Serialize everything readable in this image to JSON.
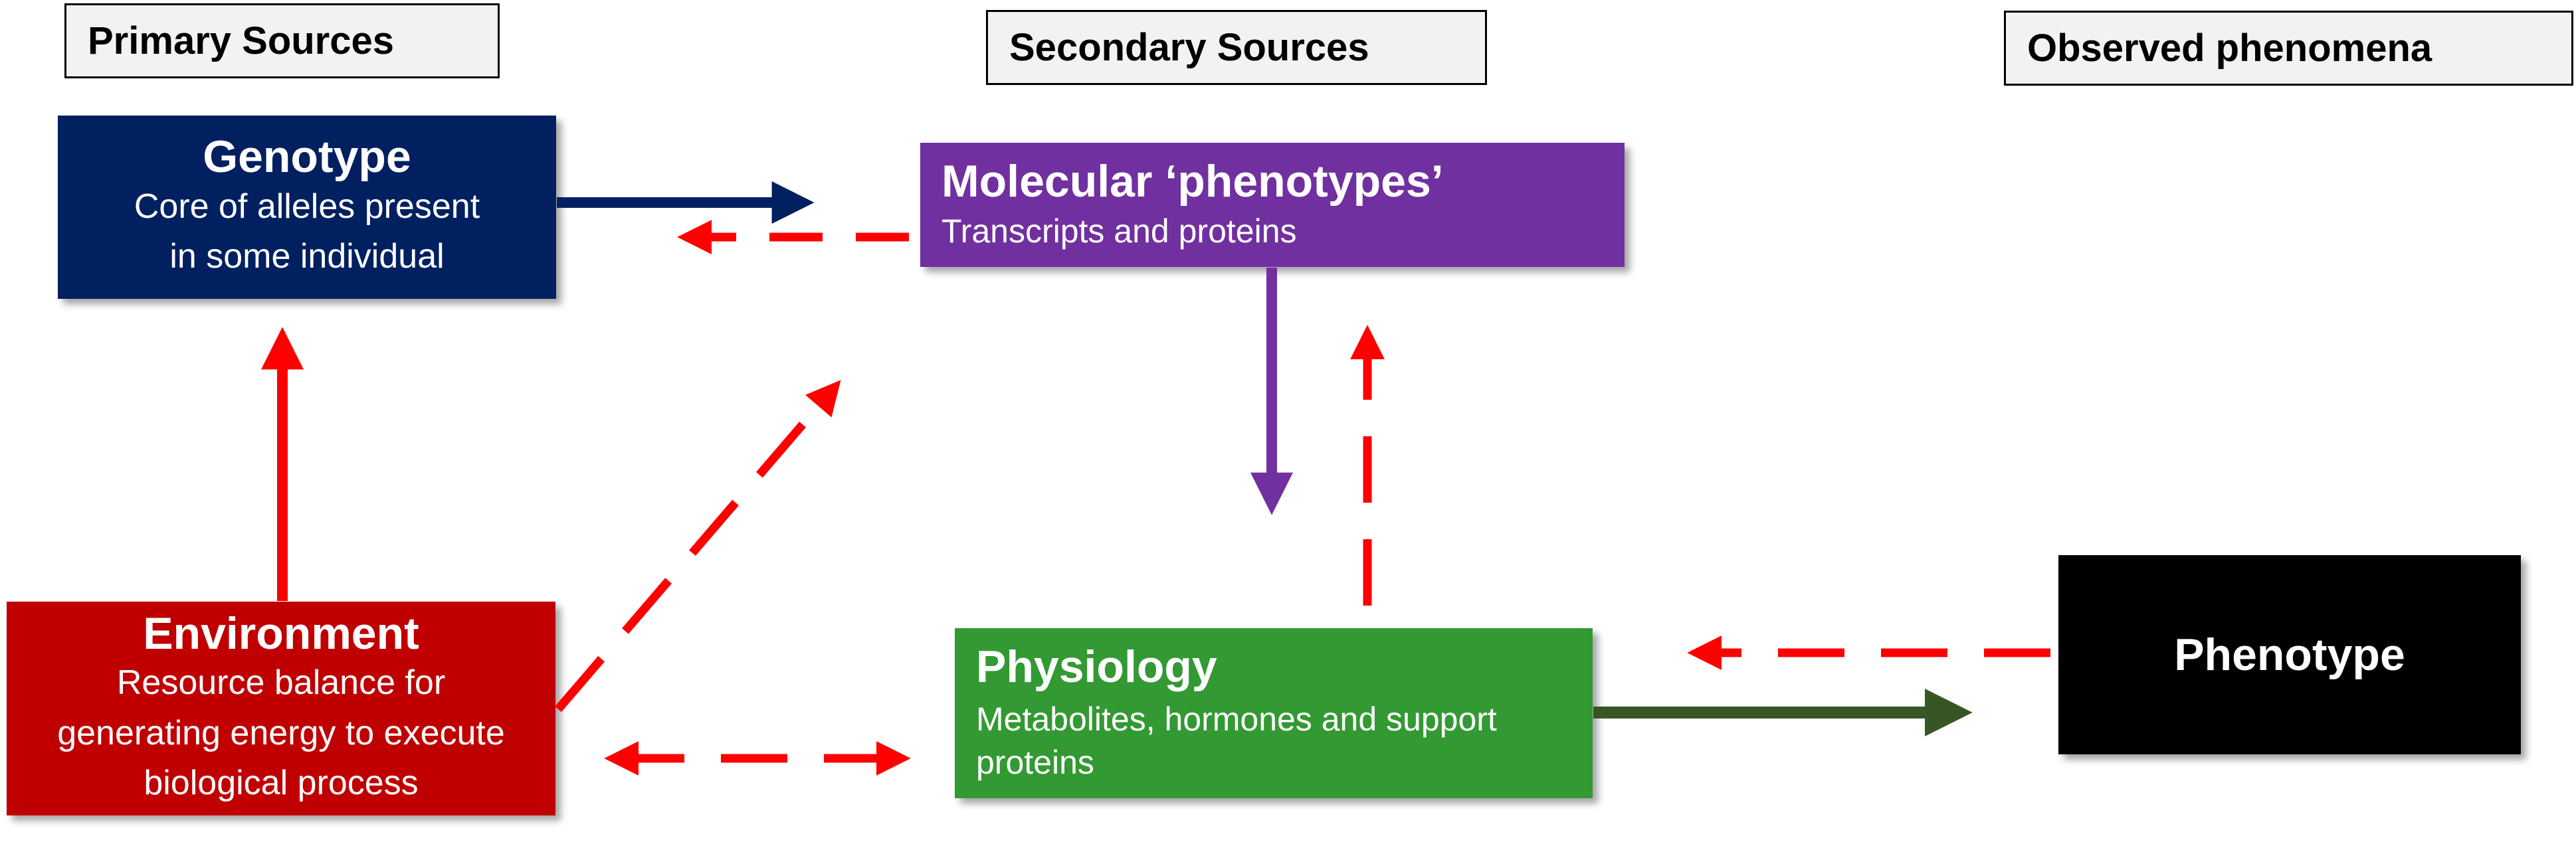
{
  "headers": {
    "primary": "Primary Sources",
    "secondary": "Secondary Sources",
    "observed": "Observed phenomena"
  },
  "boxes": {
    "genotype": {
      "title": "Genotype",
      "line1": "Core of alleles present",
      "line2": "in some individual",
      "color": "#002060"
    },
    "molecular": {
      "title": "Molecular ‘phenotypes’",
      "subtitle": "Transcripts and proteins",
      "color": "#7030a0"
    },
    "environment": {
      "title": "Environment",
      "line1": "Resource balance for",
      "line2": "generating energy to execute",
      "line3": "biological process",
      "color": "#c00000"
    },
    "physiology": {
      "title": "Physiology",
      "line1": "Metabolites, hormones and support",
      "line2": "proteins",
      "color": "#339933"
    },
    "phenotype": {
      "title": "Phenotype",
      "color": "#000000"
    }
  },
  "arrow_colors": {
    "feedback": "#ff0000",
    "genotype_to_molecular": "#002060",
    "molecular_to_physiology": "#7030a0",
    "physiology_to_phenotype": "#375623"
  }
}
